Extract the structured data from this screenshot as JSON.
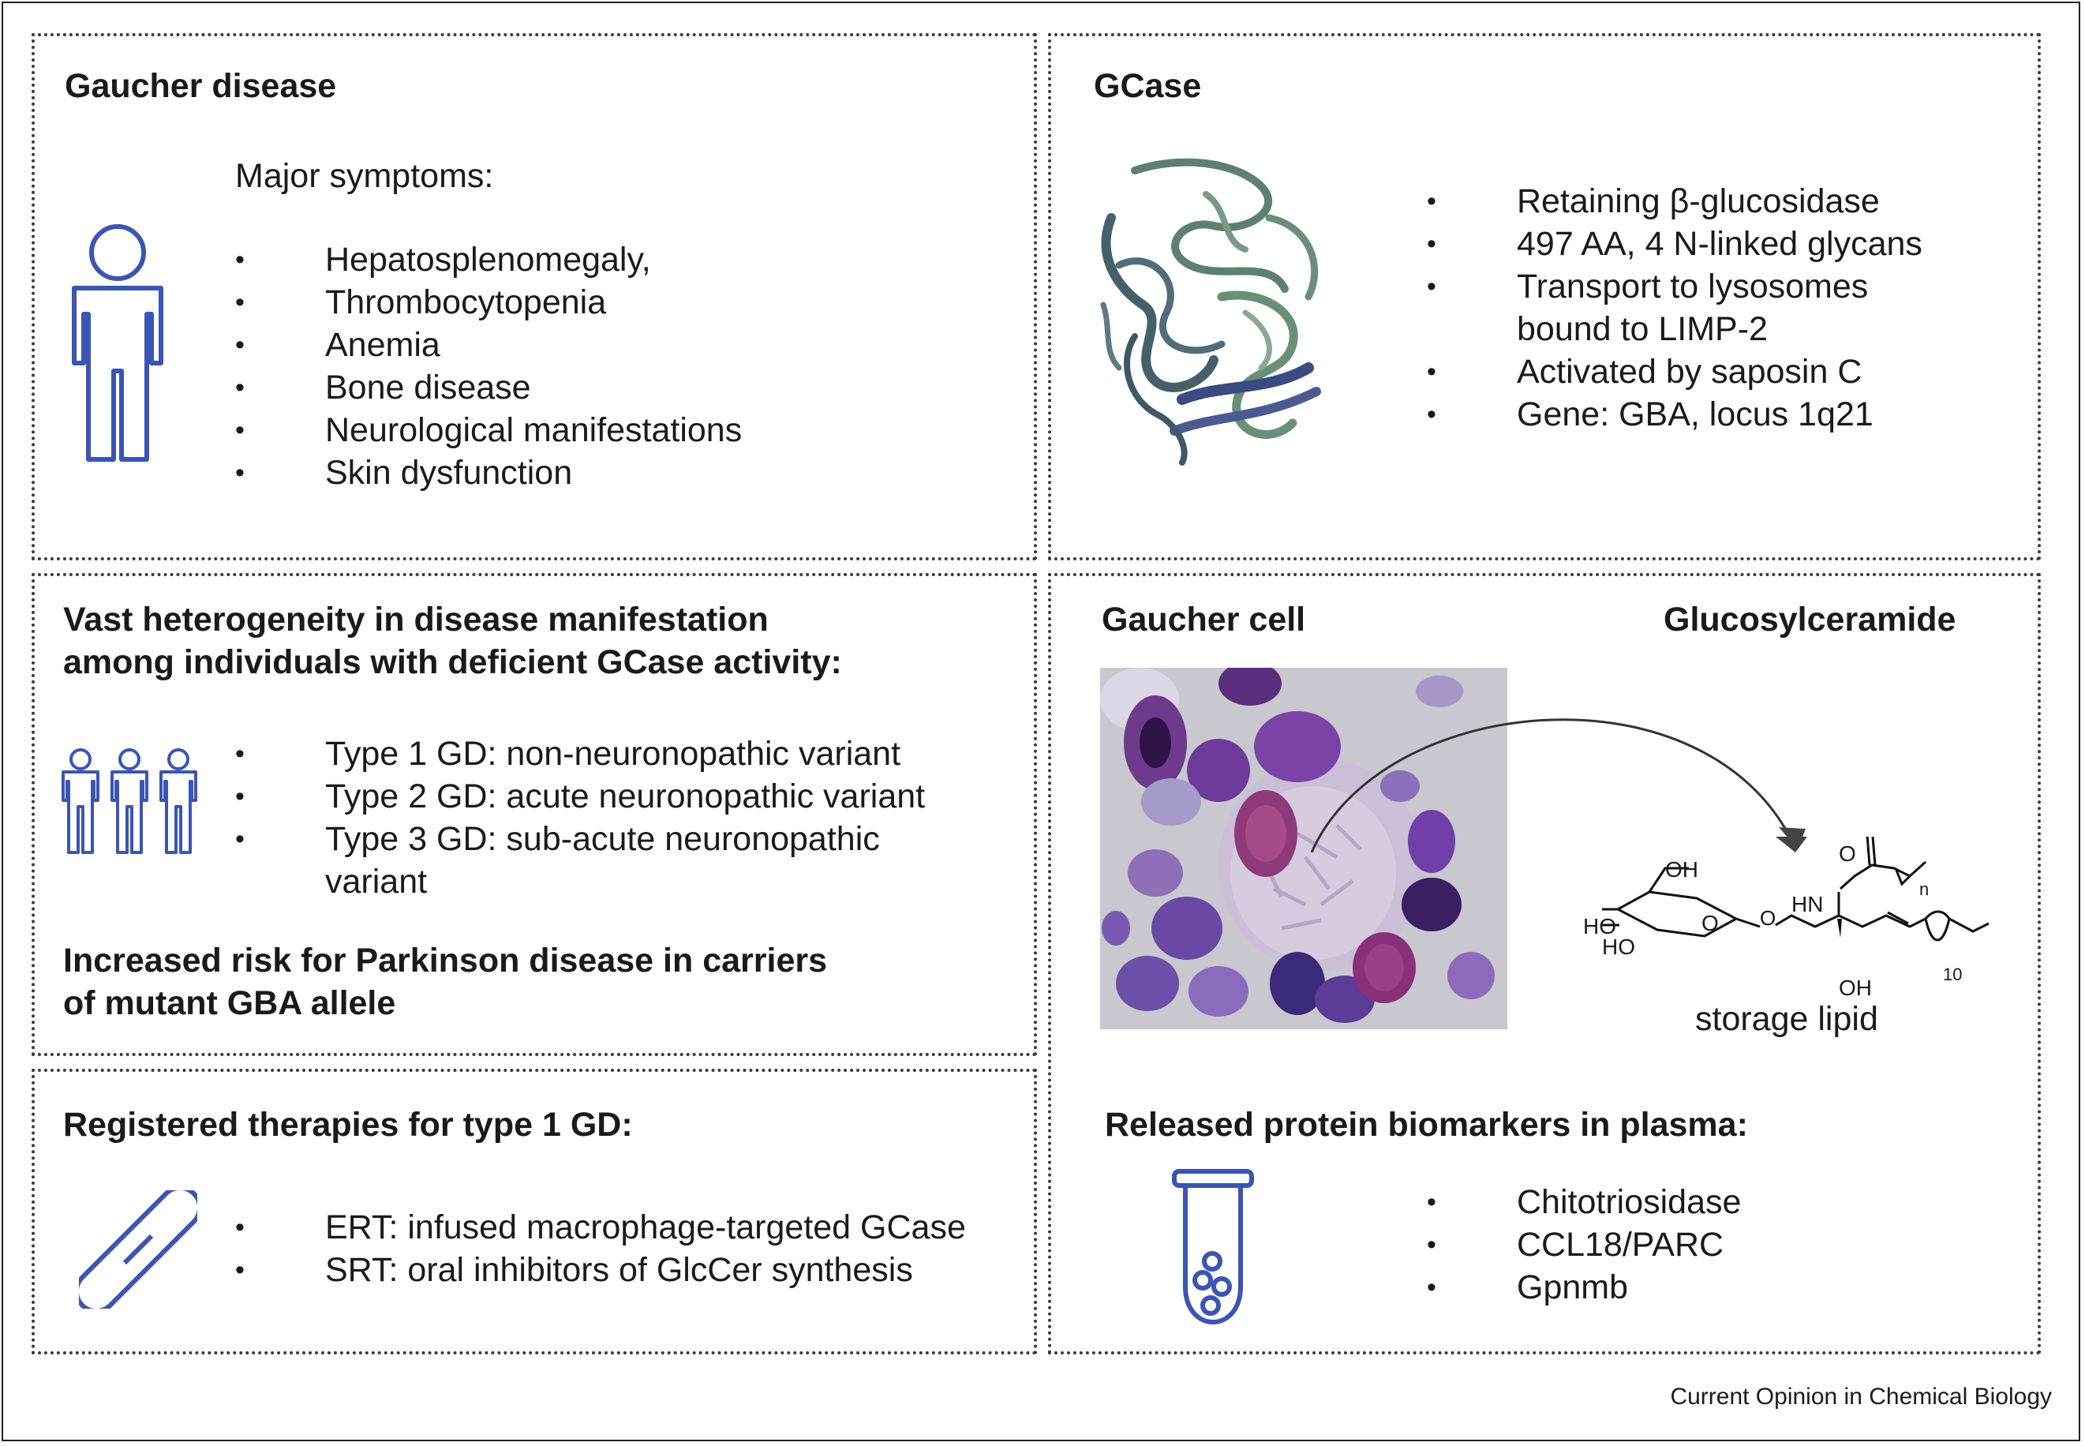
{
  "panels": {
    "gaucher_disease": {
      "title": "Gaucher disease",
      "subtitle": "Major symptoms:",
      "symptoms": [
        "Hepatosplenomegaly,",
        "Thrombocytopenia",
        "Anemia",
        "Bone disease",
        "Neurological manifestations",
        "Skin dysfunction"
      ],
      "icon": "person-icon"
    },
    "gcase": {
      "title": "GCase",
      "image": "protein-structure",
      "facts": [
        "Retaining β-glucosidase",
        "497 AA, 4 N-linked glycans",
        "Transport to lysosomes",
        "bound to LIMP-2",
        "Activated by saposin C",
        "Gene: GBA, locus 1q21"
      ]
    },
    "heterogeneity": {
      "title_lines": [
        "Vast heterogeneity in disease manifestation",
        "among individuals with deficient GCase activity:"
      ],
      "types": [
        "Type 1 GD: non-neuronopathic variant",
        "Type 2 GD: acute neuronopathic variant",
        "Type 3 GD: sub-acute neuronopathic",
        "variant"
      ],
      "parkinson_lines": [
        "Increased risk for Parkinson disease in carriers",
        "of mutant GBA allele"
      ],
      "icon": "people-group-icon"
    },
    "therapies": {
      "title": "Registered therapies for type 1 GD:",
      "items": [
        "ERT: infused macrophage-targeted GCase",
        "SRT: oral inhibitors of GlcCer synthesis"
      ],
      "icon": "pill-icon"
    },
    "gaucher_cell": {
      "cell_title": "Gaucher cell",
      "lipid_title": "Glucosylceramide",
      "lipid_caption": "storage lipid",
      "structure_labels": {
        "oh_top": "OH",
        "ho_1": "HO",
        "ho_2": "HO",
        "o_ring": "O",
        "o_link": "O",
        "o_carbonyl": "O",
        "hn": "HN",
        "n_sub": "n",
        "oh_bottom": "OH",
        "ten_sub": "10"
      },
      "biomarker_title": "Released protein biomarkers in plasma:",
      "biomarkers": [
        "Chitotriosidase",
        "CCL18/PARC",
        "Gpnmb"
      ],
      "icon": "test-tube-icon"
    }
  },
  "bullet": "•",
  "credit": "Current Opinion in Chemical Biology",
  "colors": {
    "icon_blue": "#3a55b4",
    "border": "#3a3a3a"
  }
}
